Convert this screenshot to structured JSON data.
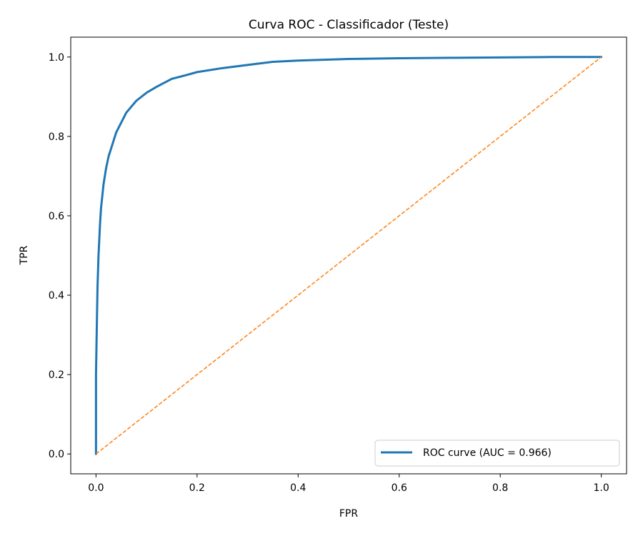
{
  "chart_data": {
    "type": "line",
    "title": "Curva ROC - Classificador (Teste)",
    "xlabel": "FPR",
    "ylabel": "TPR",
    "xlim": [
      -0.05,
      1.05
    ],
    "ylim": [
      -0.05,
      1.05
    ],
    "xticks": [
      0.0,
      0.2,
      0.4,
      0.6,
      0.8,
      1.0
    ],
    "yticks": [
      0.0,
      0.2,
      0.4,
      0.6,
      0.8,
      1.0
    ],
    "xtick_labels": [
      "0.0",
      "0.2",
      "0.4",
      "0.6",
      "0.8",
      "1.0"
    ],
    "ytick_labels": [
      "0.0",
      "0.2",
      "0.4",
      "0.6",
      "0.8",
      "1.0"
    ],
    "grid": false,
    "legend_position": "lower-right",
    "series": [
      {
        "name": "ROC curve (AUC = 0.966)",
        "color": "#1f77b4",
        "style": "solid",
        "x": [
          0.0,
          0.0,
          0.002,
          0.003,
          0.005,
          0.008,
          0.01,
          0.015,
          0.02,
          0.025,
          0.03,
          0.04,
          0.05,
          0.06,
          0.07,
          0.08,
          0.1,
          0.12,
          0.15,
          0.18,
          0.2,
          0.25,
          0.3,
          0.35,
          0.4,
          0.5,
          0.6,
          0.7,
          0.8,
          0.9,
          1.0
        ],
        "y": [
          0.0,
          0.2,
          0.35,
          0.42,
          0.5,
          0.58,
          0.62,
          0.68,
          0.72,
          0.75,
          0.77,
          0.81,
          0.835,
          0.86,
          0.875,
          0.89,
          0.91,
          0.925,
          0.945,
          0.955,
          0.962,
          0.972,
          0.98,
          0.988,
          0.991,
          0.995,
          0.997,
          0.998,
          0.999,
          1.0,
          1.0
        ]
      },
      {
        "color": "#ff7f0e",
        "style": "dashed",
        "x": [
          0.0,
          1.0
        ],
        "y": [
          0.0,
          1.0
        ]
      }
    ]
  }
}
